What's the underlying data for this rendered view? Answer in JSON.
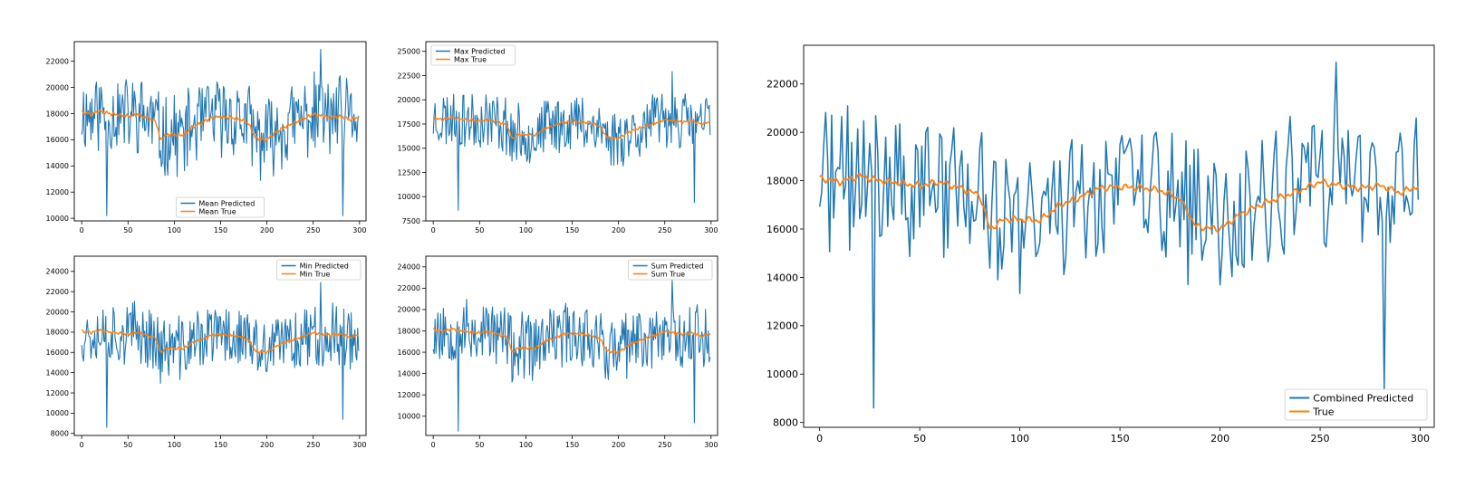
{
  "chart_data": [
    {
      "type": "line",
      "legend_position": "lower center",
      "xlim": [
        -8,
        307
      ],
      "ylim": [
        9800,
        23500
      ],
      "xticks": [
        0,
        50,
        100,
        150,
        200,
        250,
        300
      ],
      "yticks": [
        10000,
        12000,
        14000,
        16000,
        18000,
        20000,
        22000
      ],
      "noise_amp": 2900,
      "series": [
        {
          "name": "Mean Predicted",
          "color": "#1f77b4",
          "seed": 11
        },
        {
          "name": "Mean True",
          "color": "#ff7f0e",
          "smooth": true
        }
      ]
    },
    {
      "type": "line",
      "legend_position": "upper left",
      "xlim": [
        -8,
        307
      ],
      "ylim": [
        7500,
        26000
      ],
      "xticks": [
        0,
        50,
        100,
        150,
        200,
        250,
        300
      ],
      "yticks": [
        7500,
        10000,
        12500,
        15000,
        17500,
        20000,
        22500,
        25000
      ],
      "noise_amp": 2900,
      "series": [
        {
          "name": "Max Predicted",
          "color": "#1f77b4",
          "seed": 23
        },
        {
          "name": "Max True",
          "color": "#ff7f0e",
          "smooth": true
        }
      ]
    },
    {
      "type": "line",
      "legend_position": "upper right",
      "xlim": [
        -8,
        307
      ],
      "ylim": [
        7800,
        25500
      ],
      "xticks": [
        0,
        50,
        100,
        150,
        200,
        250,
        300
      ],
      "yticks": [
        8000,
        10000,
        12000,
        14000,
        16000,
        18000,
        20000,
        22000,
        24000
      ],
      "noise_amp": 3000,
      "series": [
        {
          "name": "Min Predicted",
          "color": "#1f77b4",
          "seed": 37
        },
        {
          "name": "Min True",
          "color": "#ff7f0e",
          "smooth": true
        }
      ]
    },
    {
      "type": "line",
      "legend_position": "upper right",
      "xlim": [
        -8,
        307
      ],
      "ylim": [
        8200,
        25000
      ],
      "xticks": [
        0,
        50,
        100,
        150,
        200,
        250,
        300
      ],
      "yticks": [
        10000,
        12000,
        14000,
        16000,
        18000,
        20000,
        22000,
        24000
      ],
      "noise_amp": 3000,
      "series": [
        {
          "name": "Sum Predicted",
          "color": "#1f77b4",
          "seed": 53
        },
        {
          "name": "Sum True",
          "color": "#ff7f0e",
          "smooth": true
        }
      ]
    },
    {
      "type": "line",
      "legend_position": "lower right",
      "xlim": [
        -8,
        307
      ],
      "ylim": [
        7800,
        23600
      ],
      "xticks": [
        0,
        50,
        100,
        150,
        200,
        250,
        300
      ],
      "yticks": [
        8000,
        10000,
        12000,
        14000,
        16000,
        18000,
        20000,
        22000
      ],
      "noise_amp": 2900,
      "series": [
        {
          "name": "Combined Predicted",
          "color": "#1f77b4",
          "seed": 71
        },
        {
          "name": "True",
          "color": "#ff7f0e",
          "smooth": true
        }
      ]
    }
  ],
  "true_trend": [
    [
      0,
      18100
    ],
    [
      10,
      17950
    ],
    [
      20,
      18200
    ],
    [
      30,
      18000
    ],
    [
      40,
      17900
    ],
    [
      50,
      17800
    ],
    [
      60,
      17950
    ],
    [
      70,
      17700
    ],
    [
      80,
      17400
    ],
    [
      85,
      16000
    ],
    [
      92,
      16400
    ],
    [
      100,
      16400
    ],
    [
      110,
      16350
    ],
    [
      120,
      17000
    ],
    [
      130,
      17300
    ],
    [
      140,
      17700
    ],
    [
      150,
      17750
    ],
    [
      160,
      17700
    ],
    [
      170,
      17600
    ],
    [
      180,
      17250
    ],
    [
      188,
      16100
    ],
    [
      200,
      16000
    ],
    [
      210,
      16600
    ],
    [
      220,
      17000
    ],
    [
      230,
      17300
    ],
    [
      240,
      17600
    ],
    [
      250,
      17950
    ],
    [
      260,
      17800
    ],
    [
      270,
      17700
    ],
    [
      280,
      17800
    ],
    [
      290,
      17500
    ],
    [
      300,
      17800
    ]
  ],
  "predicted_spikes": [
    {
      "x": 27,
      "y": 8600
    },
    {
      "x": 258,
      "y": 22900
    },
    {
      "x": 282,
      "y": 9400
    }
  ],
  "n_points": 300
}
